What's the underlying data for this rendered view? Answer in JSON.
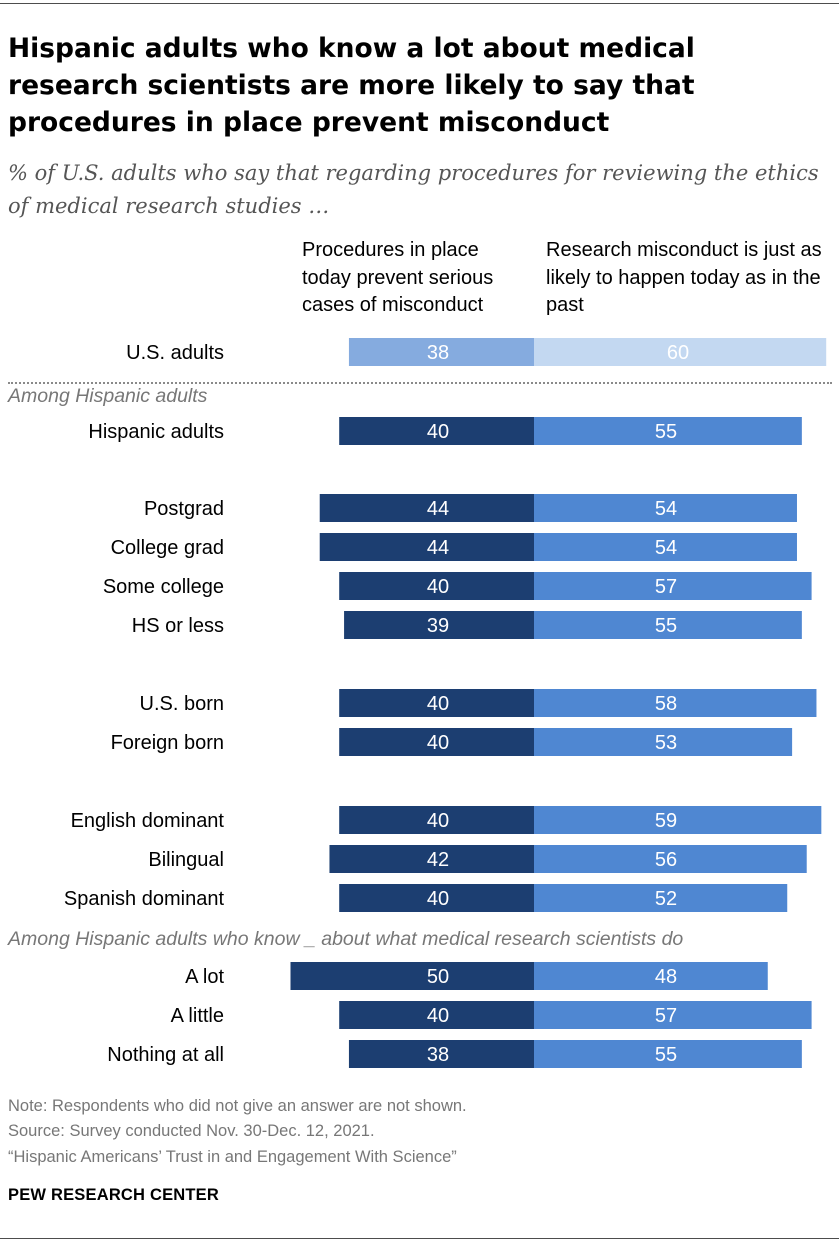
{
  "title": "Hispanic adults who know a lot about medical research scientists are more likely to say that procedures in place prevent misconduct",
  "subtitle": "% of U.S. adults who say that regarding procedures for reviewing the ethics of medical research studies …",
  "colors": {
    "us_left": "#85abdf",
    "us_right": "#c3d8f1",
    "left": "#1c3e71",
    "right": "#4f87d2",
    "bar_text": "#ffffff"
  },
  "chart_data": {
    "type": "bar",
    "orientation": "horizontal-diverging",
    "series": [
      {
        "name": "Procedures in place today prevent serious cases of misconduct"
      },
      {
        "name": "Research misconduct is just as likely to happen today as in the past"
      }
    ],
    "sections": [
      {
        "label": "",
        "rows": [
          {
            "label": "U.S. adults",
            "values": [
              38,
              60
            ],
            "highlight": true
          }
        ]
      },
      {
        "label": "Among Hispanic adults",
        "rows": [
          {
            "label": "Hispanic adults",
            "values": [
              40,
              55
            ]
          },
          {
            "label": "Postgrad",
            "values": [
              44,
              54
            ]
          },
          {
            "label": "College grad",
            "values": [
              44,
              54
            ]
          },
          {
            "label": "Some college",
            "values": [
              40,
              57
            ]
          },
          {
            "label": "HS or less",
            "values": [
              39,
              55
            ]
          },
          {
            "label": "U.S. born",
            "values": [
              40,
              58
            ]
          },
          {
            "label": "Foreign born",
            "values": [
              40,
              53
            ]
          },
          {
            "label": "English dominant",
            "values": [
              40,
              59
            ]
          },
          {
            "label": "Bilingual",
            "values": [
              42,
              56
            ]
          },
          {
            "label": "Spanish dominant",
            "values": [
              40,
              52
            ]
          }
        ]
      },
      {
        "label": "Among Hispanic adults who know _ about what medical research scientists do",
        "rows": [
          {
            "label": "A lot",
            "values": [
              50,
              48
            ]
          },
          {
            "label": "A little",
            "values": [
              40,
              57
            ]
          },
          {
            "label": "Nothing at all",
            "values": [
              38,
              55
            ]
          }
        ]
      }
    ]
  },
  "footer": {
    "note": "Note: Respondents who did not give an answer are not shown.",
    "source": "Source: Survey conducted Nov. 30-Dec. 12, 2021.",
    "report": "“Hispanic Americans’ Trust in and Engagement With Science”",
    "brand": "PEW RESEARCH CENTER"
  }
}
